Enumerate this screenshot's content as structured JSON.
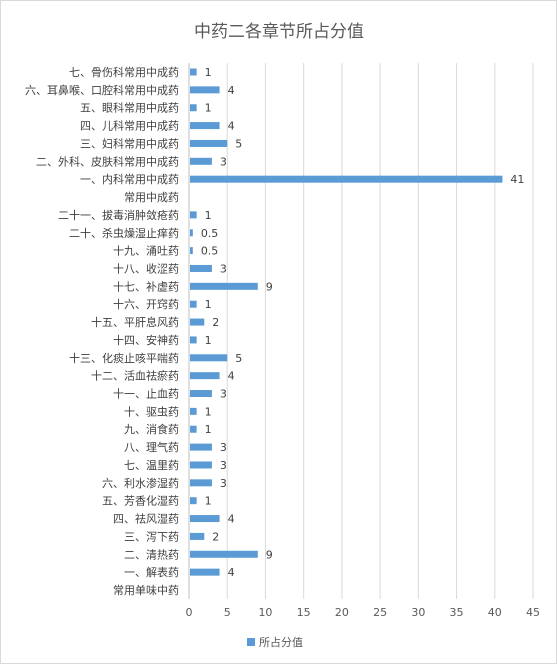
{
  "chart_data": {
    "type": "bar",
    "orientation": "horizontal",
    "title": "中药二各章节所占分值",
    "categories": [
      "常用单味中药",
      "一、解表药",
      "二、清热药",
      "三、泻下药",
      "四、祛风湿药",
      "五、芳香化湿药",
      "六、利水渗湿药",
      "七、温里药",
      "八、理气药",
      "九、消食药",
      "十、驱虫药",
      "十一、止血药",
      "十二、活血祛瘀药",
      "十三、化痰止咳平喘药",
      "十四、安神药",
      "十五、平肝息风药",
      "十六、开窍药",
      "十七、补虚药",
      "十八、收涩药",
      "十九、涌吐药",
      "二十、杀虫燥湿止痒药",
      "二十一、拔毒消肿敛疮药",
      "常用中成药",
      "一、内科常用中成药",
      "二、外科、皮肤科常用中成药",
      "三、妇科常用中成药",
      "四、儿科常用中成药",
      "五、眼科常用中成药",
      "六、耳鼻喉、口腔科常用中成药",
      "七、骨伤科常用中成药"
    ],
    "series": [
      {
        "name": "所占分值",
        "values": [
          null,
          4,
          9,
          2,
          4,
          1,
          3,
          3,
          3,
          1,
          1,
          3,
          4,
          5,
          1,
          2,
          1,
          9,
          3,
          0.5,
          0.5,
          1,
          null,
          41,
          3,
          5,
          4,
          1,
          4,
          1
        ],
        "color": "#5b9bd5"
      }
    ],
    "data_labels": [
      "",
      "4",
      "9",
      "2",
      "4",
      "1",
      "3",
      "3",
      "3",
      "1",
      "1",
      "3",
      "4",
      "5",
      "1",
      "2",
      "1",
      "9",
      "3",
      "0.5",
      "0.5",
      "1",
      "",
      "41",
      "3",
      "5",
      "4",
      "1",
      "4",
      "1"
    ],
    "xlim": [
      0,
      45
    ],
    "x_ticks": [
      "0",
      "5",
      "10",
      "15",
      "20",
      "25",
      "30",
      "35",
      "40",
      "45"
    ],
    "grid": true,
    "legend_position": "bottom",
    "colors": {
      "bar": "#5b9bd5",
      "grid": "#d9d9d9",
      "axis": "#bfbfbf",
      "text": "#404040"
    }
  }
}
